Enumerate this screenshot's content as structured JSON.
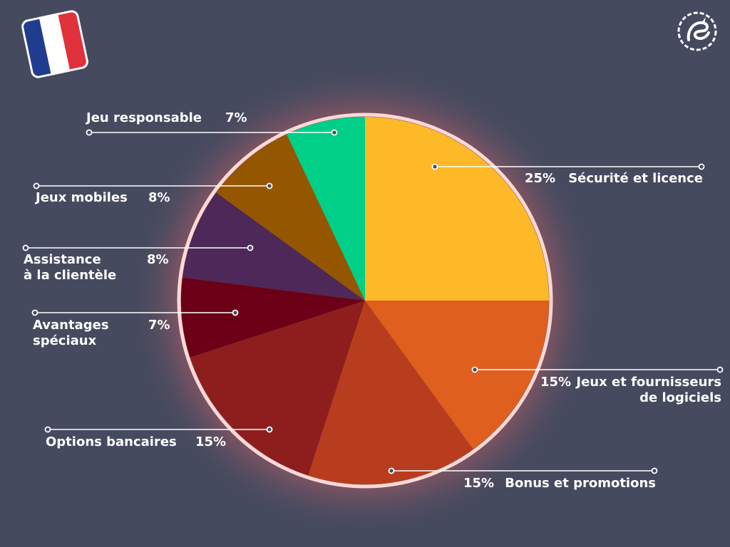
{
  "flag": {
    "country": "France",
    "colors": [
      "#1f3c8f",
      "#ffffff",
      "#e0313c"
    ]
  },
  "logo": {
    "icon": "dragon-icon"
  },
  "chart_data": {
    "type": "pie",
    "slices": [
      {
        "label": "Sécurité et licence",
        "value": 25,
        "display": "25%",
        "color": "#fdb927"
      },
      {
        "label": "Jeux et fournisseurs\nde logiciels",
        "value": 15,
        "display": "15%",
        "color": "#df5f1f"
      },
      {
        "label": "Bonus et promotions",
        "value": 15,
        "display": "15%",
        "color": "#b83d1e"
      },
      {
        "label": "Options bancaires",
        "value": 15,
        "display": "15%",
        "color": "#8e1e1e"
      },
      {
        "label": "Avantages\nspéciaux",
        "value": 7,
        "display": "7%",
        "color": "#6b0016"
      },
      {
        "label": "Assistance\nà la clientèle",
        "value": 8,
        "display": "8%",
        "color": "#4d2858"
      },
      {
        "label": "Jeux mobiles",
        "value": 8,
        "display": "8%",
        "color": "#955600"
      },
      {
        "label": "Jeu responsable",
        "value": 7,
        "display": "7%",
        "color": "#00cf88"
      }
    ]
  }
}
